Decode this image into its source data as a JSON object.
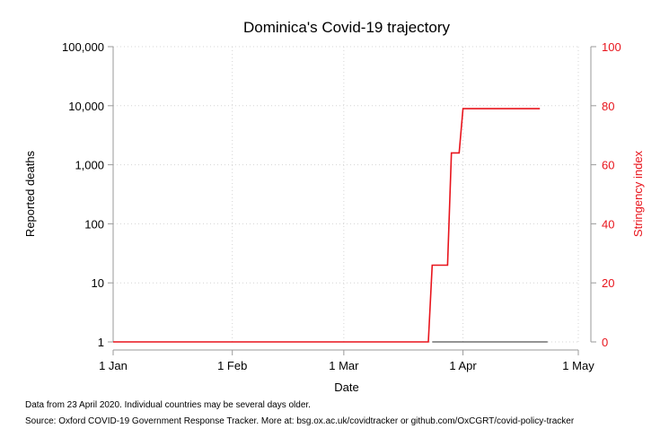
{
  "chart_data": {
    "type": "line",
    "title": "Dominica's Covid-19 trajectory",
    "xlabel": "Date",
    "ylabel_left": "Reported deaths",
    "ylabel_right": "Stringency index",
    "x_ticks": [
      {
        "date": "2020-01-01",
        "label": "1 Jan"
      },
      {
        "date": "2020-02-01",
        "label": "1 Feb"
      },
      {
        "date": "2020-03-01",
        "label": "1 Mar"
      },
      {
        "date": "2020-04-01",
        "label": "1 Apr"
      },
      {
        "date": "2020-05-01",
        "label": "1 May"
      }
    ],
    "xlim": [
      "2020-01-01",
      "2020-05-01"
    ],
    "y_left": {
      "scale": "log",
      "ylim": [
        1,
        100000
      ],
      "ticks": [
        {
          "value": 1,
          "label": "1"
        },
        {
          "value": 10,
          "label": "10"
        },
        {
          "value": 100,
          "label": "100"
        },
        {
          "value": 1000,
          "label": "1,000"
        },
        {
          "value": 10000,
          "label": "10,000"
        },
        {
          "value": 100000,
          "label": "100,000"
        }
      ]
    },
    "y_right": {
      "scale": "linear",
      "ylim": [
        0,
        100
      ],
      "ticks": [
        {
          "value": 0,
          "label": "0"
        },
        {
          "value": 20,
          "label": "20"
        },
        {
          "value": 40,
          "label": "40"
        },
        {
          "value": 60,
          "label": "60"
        },
        {
          "value": 80,
          "label": "80"
        },
        {
          "value": 100,
          "label": "100"
        }
      ]
    },
    "grid": true,
    "series": [
      {
        "axis": "right",
        "color": "#e8141c",
        "points": [
          {
            "x": "2020-01-01",
            "y": 0
          },
          {
            "x": "2020-03-23",
            "y": 0
          },
          {
            "x": "2020-03-24",
            "y": 26
          },
          {
            "x": "2020-03-28",
            "y": 26
          },
          {
            "x": "2020-03-29",
            "y": 64
          },
          {
            "x": "2020-03-31",
            "y": 64
          },
          {
            "x": "2020-04-01",
            "y": 79
          },
          {
            "x": "2020-04-21",
            "y": 79
          }
        ]
      },
      {
        "axis": "left",
        "color": "#555555",
        "points": [
          {
            "x": "2020-03-24",
            "y": 1
          },
          {
            "x": "2020-04-23",
            "y": 1
          }
        ]
      }
    ]
  },
  "notes": {
    "data_note": "Data from 23 April 2020. Individual countries may be several days older.",
    "source_note": "Source: Oxford COVID-19 Government Response Tracker. More at: bsg.ox.ac.uk/covidtracker or github.com/OxCGRT/covid-policy-tracker"
  },
  "colors": {
    "stringency": "#e8141c",
    "deaths": "#555555",
    "grid": "#d4d4d4"
  }
}
